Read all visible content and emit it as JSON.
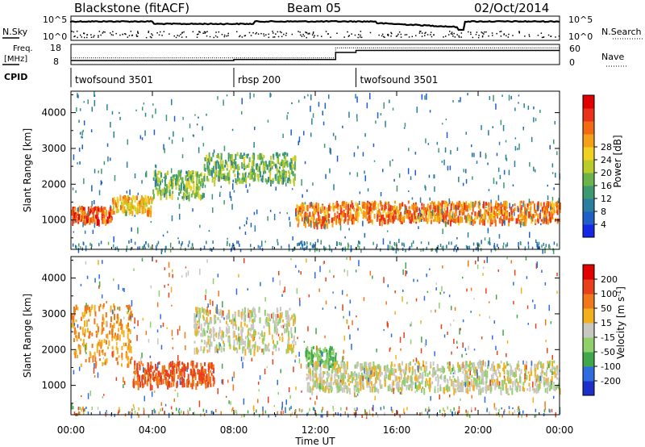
{
  "header": {
    "station": "Blackstone (fitACF)",
    "beam": "Beam 05",
    "date": "02/Oct/2014"
  },
  "time_axis": {
    "label": "Time UT",
    "ticks": [
      "00:00",
      "04:00",
      "08:00",
      "12:00",
      "16:00",
      "20:00",
      "00:00"
    ],
    "range_hours": [
      0,
      24
    ]
  },
  "noise_panel": {
    "left_label": "N.Sky",
    "right_label": "N.Search",
    "left_ticks": [
      "10^5",
      "10^0"
    ],
    "right_ticks": [
      "10^5",
      "10^0"
    ]
  },
  "freq_panel": {
    "left_label_1": "Freq.",
    "left_label_2": "[MHz]",
    "left_ticks": [
      "18",
      "8"
    ],
    "right_ticks": [
      "60",
      "0"
    ],
    "right_label": "Nave",
    "freq_mhz_segments": [
      {
        "from_h": 0,
        "to_h": 8,
        "value": 10
      },
      {
        "from_h": 8,
        "to_h": 13,
        "value": 10.5
      },
      {
        "from_h": 13,
        "to_h": 14,
        "value": 14
      },
      {
        "from_h": 14,
        "to_h": 24,
        "value": 15
      }
    ],
    "nave_segments": [
      {
        "from_h": 0,
        "to_h": 13,
        "value": 20
      },
      {
        "from_h": 13,
        "to_h": 24,
        "value": 50
      }
    ]
  },
  "cpid_panel": {
    "label": "CPID",
    "segments": [
      {
        "name": "twofsound 3501",
        "from_h": 0,
        "to_h": 8
      },
      {
        "name": "rbsp 200",
        "from_h": 8,
        "to_h": 14
      },
      {
        "name": "twofsound 3501",
        "from_h": 14,
        "to_h": 24
      }
    ]
  },
  "chart_data": [
    {
      "type": "heatmap",
      "title": "",
      "xlabel": "Time UT",
      "ylabel": "Slant Range [km]",
      "ylabel_display": "Slant Range [km]",
      "xlim_hours": [
        0,
        24
      ],
      "ylim_km": [
        180,
        4600
      ],
      "y_ticks": [
        1000,
        2000,
        3000,
        4000
      ],
      "colorbar": {
        "label": "Power [dB]",
        "ticks": [
          "4",
          "8",
          "12",
          "16",
          "20",
          "24",
          "28"
        ],
        "colors": [
          "#1428e6",
          "#1f5fc8",
          "#2a7fa0",
          "#3d9a70",
          "#6cb34a",
          "#b9cc2a",
          "#f0d020",
          "#f4a018",
          "#f26a14",
          "#e8321a",
          "#e00000"
        ]
      },
      "echo_bands": [
        {
          "from_h": 0.0,
          "to_h": 2.0,
          "lo_km": 1000,
          "hi_km": 1400,
          "value_db": 26
        },
        {
          "from_h": 2.0,
          "to_h": 4.0,
          "lo_km": 1250,
          "hi_km": 1700,
          "value_db": 20
        },
        {
          "from_h": 4.0,
          "to_h": 6.5,
          "lo_km": 1700,
          "hi_km": 2400,
          "value_db": 14
        },
        {
          "from_h": 6.5,
          "to_h": 11.0,
          "lo_km": 2100,
          "hi_km": 2900,
          "value_db": 13
        },
        {
          "from_h": 11.0,
          "to_h": 13.0,
          "lo_km": 900,
          "hi_km": 1500,
          "value_db": 24
        },
        {
          "from_h": 13.0,
          "to_h": 24.0,
          "lo_km": 1000,
          "hi_km": 1550,
          "value_db": 24
        }
      ]
    },
    {
      "type": "heatmap",
      "title": "",
      "xlabel": "Time UT",
      "ylabel": "Slant Range [km]",
      "ylabel_display": "Slant Range [km]",
      "xlim_hours": [
        0,
        24
      ],
      "ylim_km": [
        180,
        4600
      ],
      "y_ticks": [
        1000,
        2000,
        3000,
        4000
      ],
      "colorbar": {
        "label": "Velocity [m s^-1]",
        "ticks": [
          "200",
          "100",
          "50",
          "15",
          "-15",
          "-50",
          "-100",
          "-200"
        ],
        "colors": [
          "#1c2fc8",
          "#2f6ce0",
          "#3fa84a",
          "#8fd06a",
          "#c8c8c0",
          "#f2b020",
          "#f07818",
          "#e8401a",
          "#e00000"
        ]
      },
      "echo_bands": [
        {
          "from_h": 0.0,
          "to_h": 3.0,
          "lo_km": 1600,
          "hi_km": 3300,
          "value_ms": -50
        },
        {
          "from_h": 3.0,
          "to_h": 7.0,
          "lo_km": 1050,
          "hi_km": 1700,
          "value_ms": -100
        },
        {
          "from_h": 6.0,
          "to_h": 11.0,
          "lo_km": 2000,
          "hi_km": 3200,
          "value_ms": 0
        },
        {
          "from_h": 11.5,
          "to_h": 13.0,
          "lo_km": 1600,
          "hi_km": 2100,
          "value_ms": 50
        },
        {
          "from_h": 11.5,
          "to_h": 24.0,
          "lo_km": 900,
          "hi_km": 1700,
          "value_ms": 0
        }
      ]
    }
  ]
}
